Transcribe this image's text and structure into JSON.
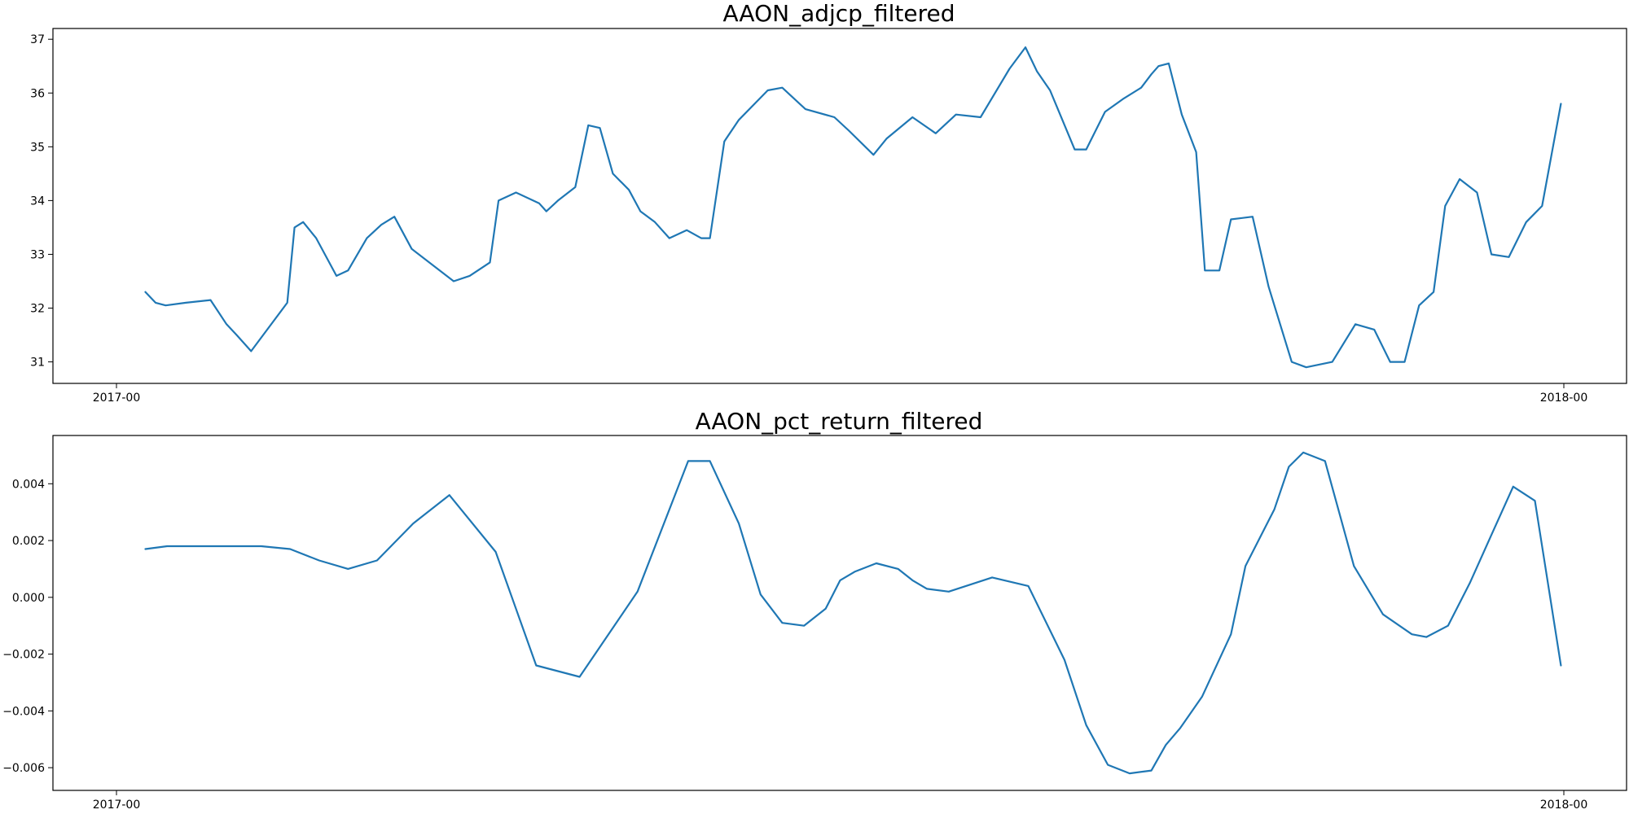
{
  "colors": {
    "series": "#1f77b4",
    "axis": "#000000",
    "background": "#ffffff"
  },
  "chart_data": [
    {
      "type": "line",
      "title": "AAON_adjcp_filtered",
      "xlabel": "",
      "ylabel": "",
      "grid": false,
      "legend": "none",
      "x_tick_labels": [
        "2017-00",
        "2018-00"
      ],
      "x_range": [
        0,
        1
      ],
      "x_ticks": [
        0,
        1
      ],
      "ylim": [
        30.6,
        37.2
      ],
      "yticks": [
        31,
        32,
        33,
        34,
        35,
        36,
        37
      ],
      "ytick_labels": [
        "31",
        "32",
        "33",
        "34",
        "35",
        "36",
        "37"
      ],
      "series": [
        {
          "name": "AAON_adjcp_filtered",
          "x": [
            0.02,
            0.027,
            0.034,
            0.048,
            0.065,
            0.076,
            0.083,
            0.093,
            0.118,
            0.123,
            0.129,
            0.138,
            0.152,
            0.16,
            0.173,
            0.183,
            0.192,
            0.204,
            0.233,
            0.244,
            0.258,
            0.264,
            0.276,
            0.292,
            0.297,
            0.305,
            0.317,
            0.326,
            0.334,
            0.343,
            0.354,
            0.362,
            0.372,
            0.382,
            0.394,
            0.404,
            0.41,
            0.42,
            0.43,
            0.45,
            0.46,
            0.476,
            0.496,
            0.506,
            0.523,
            0.532,
            0.55,
            0.566,
            0.58,
            0.597,
            0.617,
            0.628,
            0.636,
            0.645,
            0.662,
            0.67,
            0.683,
            0.696,
            0.708,
            0.715,
            0.72,
            0.727,
            0.736,
            0.746,
            0.752,
            0.762,
            0.77,
            0.785,
            0.796,
            0.812,
            0.822,
            0.84,
            0.856,
            0.869,
            0.88,
            0.89,
            0.9,
            0.91,
            0.918,
            0.928,
            0.94,
            0.95,
            0.962,
            0.974,
            0.985,
            0.998
          ],
          "values": [
            32.3,
            32.1,
            32.05,
            32.1,
            32.15,
            31.7,
            31.5,
            31.2,
            32.1,
            33.5,
            33.6,
            33.3,
            32.6,
            32.7,
            33.3,
            33.55,
            33.7,
            33.1,
            32.5,
            32.6,
            32.85,
            34.0,
            34.15,
            33.95,
            33.8,
            34.0,
            34.25,
            35.4,
            35.35,
            34.5,
            34.2,
            33.8,
            33.6,
            33.3,
            33.45,
            33.3,
            33.3,
            35.1,
            35.5,
            36.05,
            36.1,
            35.7,
            35.55,
            35.3,
            34.85,
            35.15,
            35.55,
            35.25,
            35.6,
            35.55,
            36.45,
            36.85,
            36.4,
            36.05,
            34.95,
            34.95,
            35.65,
            35.9,
            36.1,
            36.35,
            36.5,
            36.55,
            35.6,
            34.9,
            32.7,
            32.7,
            33.65,
            33.7,
            32.4,
            31.0,
            30.9,
            31.0,
            31.7,
            31.6,
            31.0,
            31.0,
            32.05,
            32.3,
            33.9,
            34.4,
            34.15,
            33.0,
            32.95,
            33.6,
            33.9,
            35.8
          ]
        }
      ]
    },
    {
      "type": "line",
      "title": "AAON_pct_return_filtered",
      "xlabel": "",
      "ylabel": "",
      "grid": false,
      "legend": "none",
      "x_tick_labels": [
        "2017-00",
        "2018-00"
      ],
      "x_range": [
        0,
        1
      ],
      "x_ticks": [
        0,
        1
      ],
      "ylim": [
        -0.0068,
        0.0057
      ],
      "yticks": [
        -0.006,
        -0.004,
        -0.002,
        0.0,
        0.002,
        0.004
      ],
      "ytick_labels": [
        "−0.006",
        "−0.004",
        "−0.002",
        "0.000",
        "0.002",
        "0.004"
      ],
      "series": [
        {
          "name": "AAON_pct_return_filtered",
          "x": [
            0.02,
            0.035,
            0.055,
            0.08,
            0.1,
            0.12,
            0.14,
            0.16,
            0.18,
            0.205,
            0.23,
            0.262,
            0.29,
            0.32,
            0.36,
            0.395,
            0.41,
            0.43,
            0.445,
            0.46,
            0.475,
            0.49,
            0.5,
            0.51,
            0.525,
            0.54,
            0.55,
            0.56,
            0.575,
            0.605,
            0.63,
            0.655,
            0.67,
            0.685,
            0.7,
            0.715,
            0.725,
            0.735,
            0.75,
            0.77,
            0.78,
            0.8,
            0.81,
            0.82,
            0.835,
            0.855,
            0.875,
            0.895,
            0.905,
            0.92,
            0.935,
            0.95,
            0.965,
            0.98,
            0.998
          ],
          "values": [
            0.0017,
            0.0018,
            0.0018,
            0.0018,
            0.0018,
            0.0017,
            0.0013,
            0.001,
            0.0013,
            0.0026,
            0.0036,
            0.0016,
            -0.0024,
            -0.0028,
            0.0002,
            0.0048,
            0.0048,
            0.0026,
            0.0001,
            -0.0009,
            -0.001,
            -0.0004,
            0.0006,
            0.0009,
            0.0012,
            0.001,
            0.0006,
            0.0003,
            0.0002,
            0.0007,
            0.0004,
            -0.0022,
            -0.0045,
            -0.0059,
            -0.0062,
            -0.0061,
            -0.0052,
            -0.0046,
            -0.0035,
            -0.0013,
            0.0011,
            0.0031,
            0.0046,
            0.0051,
            0.0048,
            0.0011,
            -0.0006,
            -0.0013,
            -0.0014,
            -0.001,
            0.0005,
            0.0022,
            0.0039,
            0.0034,
            -0.0024
          ]
        }
      ]
    }
  ]
}
